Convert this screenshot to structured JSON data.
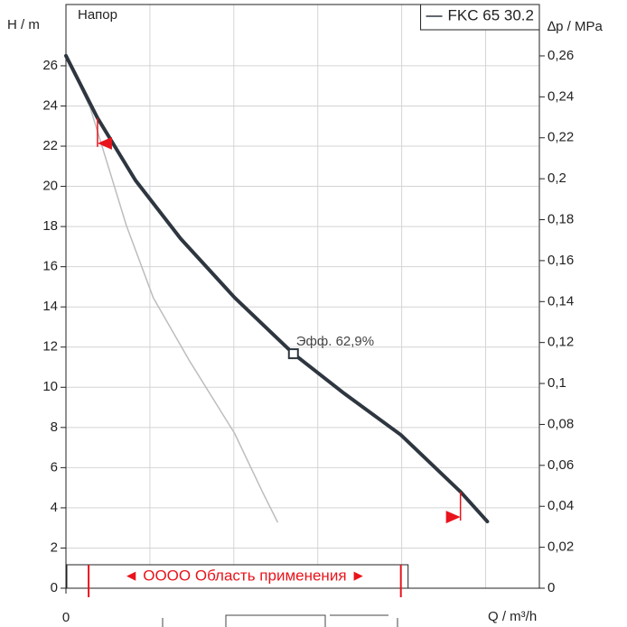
{
  "chart_data": {
    "type": "line",
    "title": "Напор",
    "ylabel": "H / m",
    "y2label": "∆p / MPa",
    "xlabel": "Q / m³/h",
    "xlim": [
      0,
      28.2
    ],
    "xticks": [
      0
    ],
    "xgrid": [
      5,
      10,
      15,
      20,
      25
    ],
    "ylim": [
      0,
      29.05
    ],
    "yticks": [
      0,
      2,
      4,
      6,
      8,
      10,
      12,
      14,
      16,
      18,
      20,
      22,
      24,
      26
    ],
    "y2lim": [
      0,
      0.2851
    ],
    "y2ticks": [
      0,
      {
        "value": 0.02,
        "label": "0,02"
      },
      {
        "value": 0.04,
        "label": "0,04"
      },
      {
        "value": 0.06,
        "label": "0,06"
      },
      {
        "value": 0.08,
        "label": "0,08"
      },
      {
        "value": 0.1,
        "label": "0,1"
      },
      {
        "value": 0.12,
        "label": "0,12"
      },
      {
        "value": 0.14,
        "label": "0,14"
      },
      {
        "value": 0.16,
        "label": "0,16"
      },
      {
        "value": 0.18,
        "label": "0,18"
      },
      {
        "value": 0.2,
        "label": "0,2"
      },
      {
        "value": 0.22,
        "label": "0,22"
      },
      {
        "value": 0.24,
        "label": "0,24"
      },
      {
        "value": 0.26,
        "label": "0,26"
      }
    ],
    "grid": true,
    "legend": "top-right",
    "series": [
      {
        "name": "FKC 65 30.2",
        "color": "#2e3640",
        "x": [
          0,
          1.88,
          4.14,
          6.83,
          10.05,
          13.55,
          16.5,
          19.95,
          23.5,
          25.1
        ],
        "values": [
          26.5,
          23.4,
          20.3,
          17.4,
          14.46,
          11.67,
          9.74,
          7.63,
          4.8,
          3.32
        ]
      },
      {
        "color": "#bdbdbd",
        "x": [
          0,
          1.45,
          3.6,
          5.2,
          7.37,
          10.05,
          11.7,
          12.6
        ],
        "values": [
          26.5,
          23.9,
          18.05,
          14.46,
          11.3,
          7.7,
          4.8,
          3.3
        ]
      }
    ],
    "annotations": [
      {
        "text": "Эфф.  62,9%",
        "x": 13.55,
        "y": 11.67
      }
    ],
    "limits": [
      {
        "x": 1.88,
        "y": 23.4,
        "dir": "left"
      },
      {
        "x": 23.5,
        "y": 4.8,
        "dir": "right"
      }
    ],
    "range": {
      "label": "◄ OOOO Область применения ►",
      "x": [
        1.35,
        19.95
      ]
    }
  }
}
